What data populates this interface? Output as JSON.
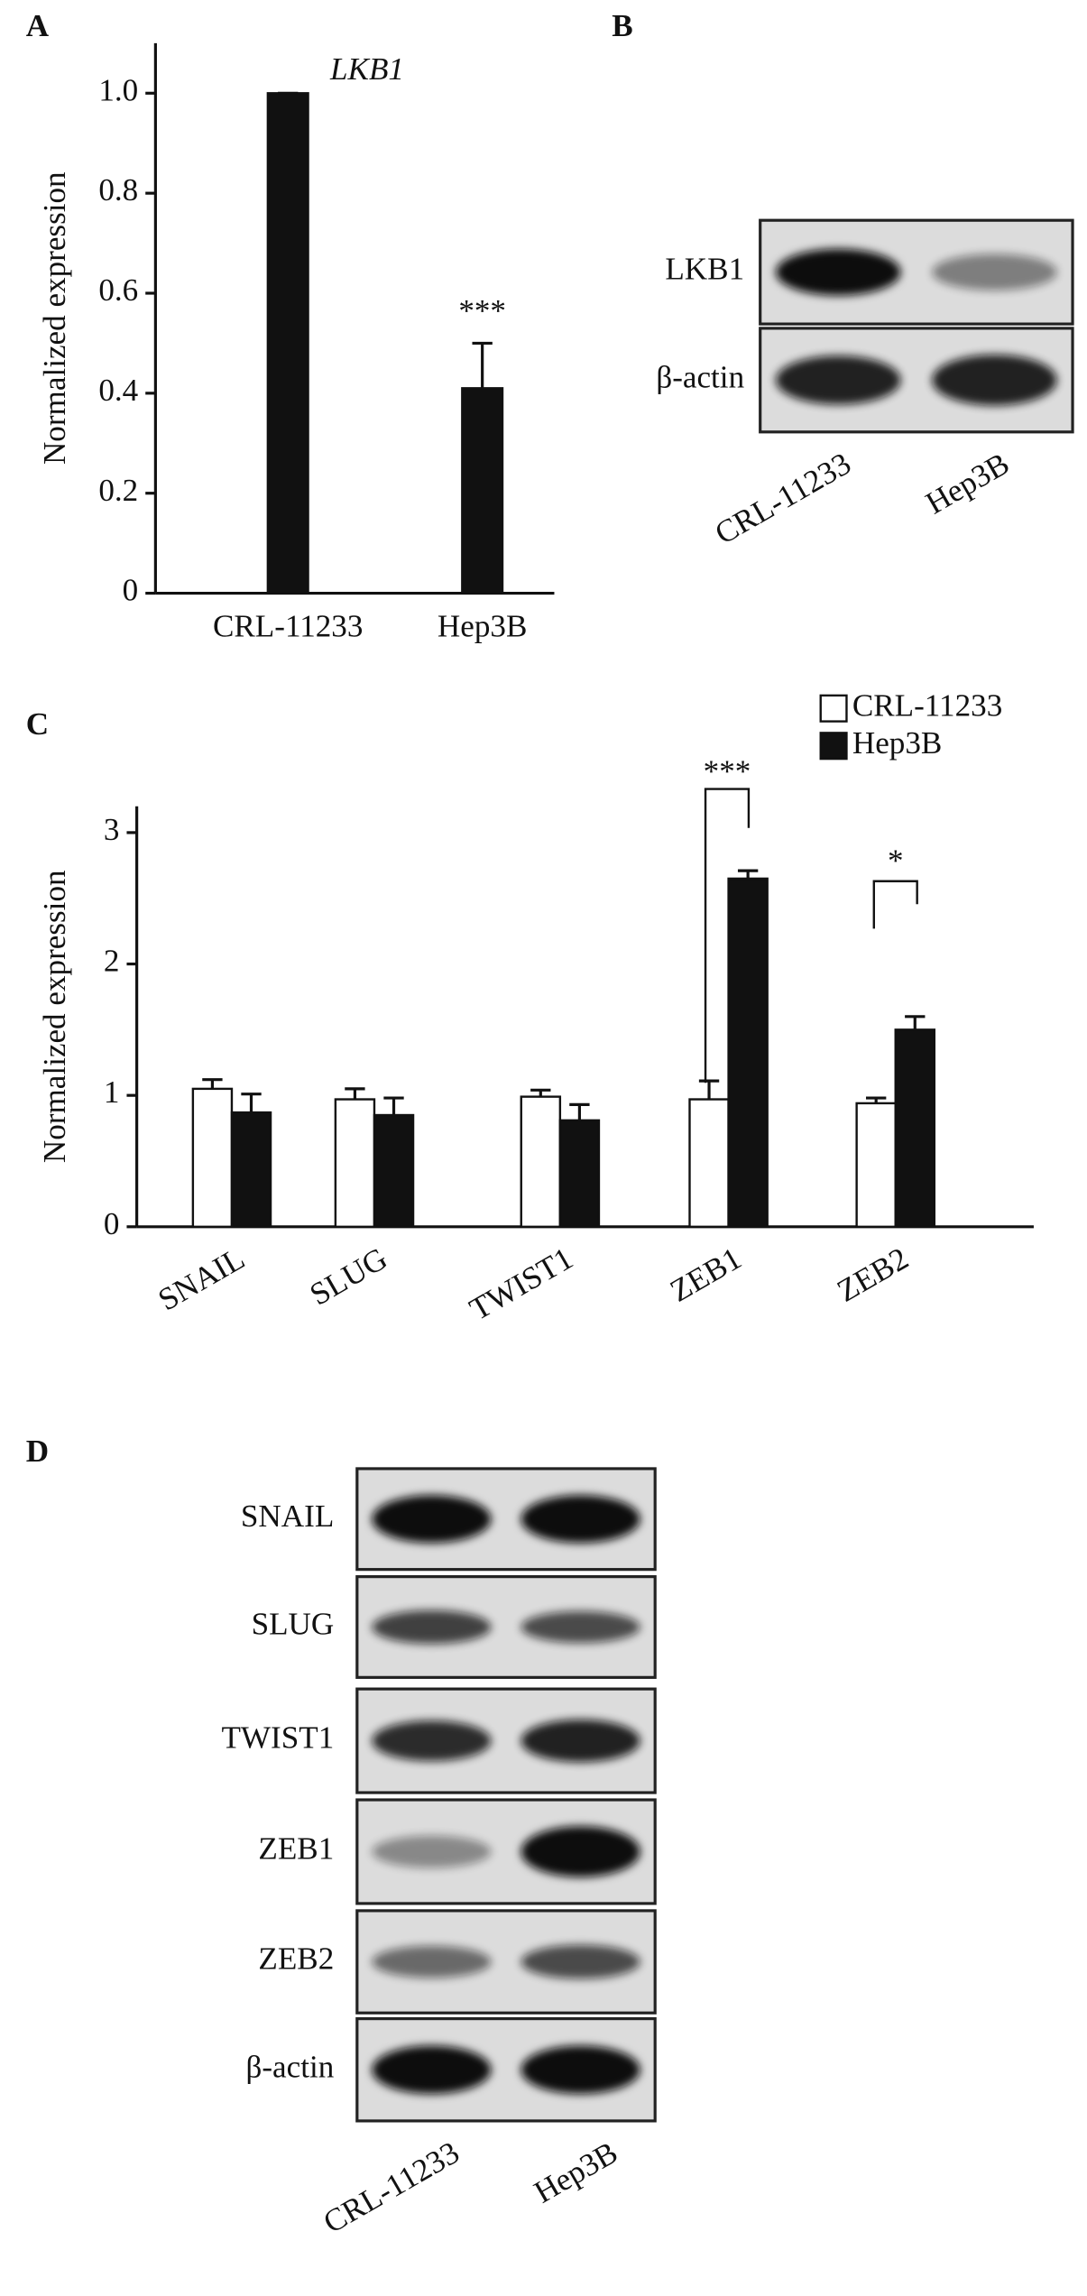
{
  "chart_data": [
    {
      "type": "bar",
      "panel_label": "A",
      "y_label": "Normalized expression",
      "categories": [
        "CRL-11233",
        "Hep3B"
      ],
      "values": [
        1,
        0.41
      ],
      "errors": [
        0,
        0.09
      ],
      "color": "#111111",
      "ylim": [
        0,
        1.1
      ],
      "yticks": [
        0,
        0.2,
        0.4,
        0.6,
        0.8,
        {
          "value": 1,
          "label": "1.0"
        }
      ],
      "annotations": [
        "LKB1",
        "***"
      ]
    },
    {
      "type": "bar",
      "panel_label": "C",
      "y_label": "Normalized expression",
      "categories": [
        "SNAIL",
        "SLUG",
        "TWIST1",
        "ZEB1",
        "ZEB2"
      ],
      "series": [
        {
          "name": "CRL-11233",
          "color": "#ffffff",
          "values": [
            1.05,
            0.97,
            0.99,
            0.97,
            0.94
          ],
          "errors": [
            0.07,
            0.08,
            0.05,
            0.14,
            0.04
          ]
        },
        {
          "name": "Hep3B",
          "color": "#111111",
          "values": [
            0.87,
            0.85,
            0.81,
            2.65,
            1.5
          ],
          "errors": [
            0.14,
            0.13,
            0.12,
            0.06,
            0.1
          ]
        }
      ],
      "ylim": [
        0,
        3.2
      ],
      "yticks": [
        0,
        1,
        2,
        3
      ],
      "annotations": [
        "***",
        "*"
      ]
    }
  ],
  "blots": [
    {
      "panel_label": "B",
      "rows": [
        "LKB1",
        "β-actin"
      ],
      "lanes": [
        "CRL-11233",
        "Hep3B"
      ]
    },
    {
      "panel_label": "D",
      "rows": [
        "SNAIL",
        "SLUG",
        "TWIST1",
        "ZEB1",
        "ZEB2",
        "β-actin"
      ],
      "lanes": [
        "CRL-11233",
        "Hep3B"
      ]
    }
  ]
}
